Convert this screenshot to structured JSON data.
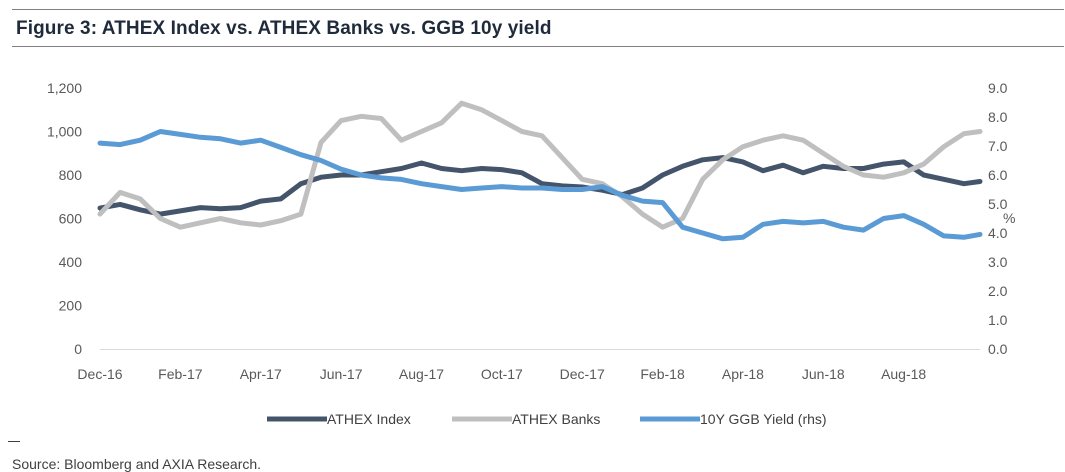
{
  "figure": {
    "title": "Figure 3: ATHEX Index vs. ATHEX Banks vs. GGB 10y yield",
    "source": "Source: Bloomberg and AXIA Research."
  },
  "chart_data": {
    "type": "line",
    "x_labels": [
      "Dec-16",
      "Feb-17",
      "Apr-17",
      "Jun-17",
      "Aug-17",
      "Oct-17",
      "Dec-17",
      "Feb-18",
      "Apr-18",
      "Jun-18",
      "Aug-18"
    ],
    "x_index_range": [
      0,
      10.95
    ],
    "left_axis": {
      "ylim": [
        0,
        1200
      ],
      "ticks": [
        "0",
        "200",
        "400",
        "600",
        "800",
        "1,000",
        "1,200"
      ],
      "tick_values": [
        0,
        200,
        400,
        600,
        800,
        1000,
        1200
      ]
    },
    "right_axis": {
      "ylim": [
        0,
        9
      ],
      "label": "%",
      "ticks": [
        "0.0",
        "1.0",
        "2.0",
        "3.0",
        "4.0",
        "5.0",
        "6.0",
        "7.0",
        "8.0",
        "9.0"
      ],
      "tick_values": [
        0,
        1,
        2,
        3,
        4,
        5,
        6,
        7,
        8,
        9
      ]
    },
    "grid": false,
    "legend_position": "bottom",
    "series": [
      {
        "name": "ATHEX Index",
        "axis": "left",
        "color": "#44546a",
        "x": [
          0,
          0.25,
          0.5,
          0.75,
          1,
          1.25,
          1.5,
          1.75,
          2,
          2.25,
          2.5,
          2.75,
          3,
          3.25,
          3.5,
          3.75,
          4,
          4.25,
          4.5,
          4.75,
          5,
          5.25,
          5.5,
          5.75,
          6,
          6.25,
          6.5,
          6.75,
          7,
          7.25,
          7.5,
          7.75,
          8,
          8.25,
          8.5,
          8.75,
          9,
          9.25,
          9.5,
          9.75,
          10,
          10.25,
          10.5,
          10.75,
          10.95
        ],
        "y": [
          648,
          665,
          640,
          620,
          635,
          650,
          645,
          650,
          680,
          690,
          760,
          790,
          800,
          800,
          815,
          830,
          855,
          830,
          820,
          830,
          825,
          810,
          760,
          750,
          745,
          730,
          710,
          740,
          800,
          840,
          870,
          880,
          860,
          820,
          845,
          810,
          840,
          830,
          830,
          850,
          860,
          800,
          780,
          760,
          770
        ]
      },
      {
        "name": "ATHEX Banks",
        "axis": "left",
        "color": "#bfbfbf",
        "x": [
          0,
          0.25,
          0.5,
          0.75,
          1,
          1.25,
          1.5,
          1.75,
          2,
          2.25,
          2.5,
          2.75,
          3,
          3.25,
          3.5,
          3.75,
          4,
          4.25,
          4.5,
          4.75,
          5,
          5.25,
          5.5,
          5.75,
          6,
          6.25,
          6.5,
          6.75,
          7,
          7.25,
          7.5,
          7.75,
          8,
          8.25,
          8.5,
          8.75,
          9,
          9.25,
          9.5,
          9.75,
          10,
          10.25,
          10.5,
          10.75,
          10.95
        ],
        "y": [
          620,
          720,
          690,
          600,
          560,
          580,
          600,
          580,
          570,
          590,
          620,
          950,
          1050,
          1070,
          1060,
          960,
          1000,
          1040,
          1130,
          1100,
          1050,
          1000,
          980,
          880,
          780,
          760,
          700,
          620,
          560,
          600,
          780,
          870,
          930,
          960,
          980,
          960,
          900,
          840,
          800,
          790,
          810,
          850,
          930,
          990,
          1000
        ]
      },
      {
        "name": "10Y GGB Yield (rhs)",
        "axis": "right",
        "color": "#5b9bd5",
        "x": [
          0,
          0.25,
          0.5,
          0.75,
          1,
          1.25,
          1.5,
          1.75,
          2,
          2.25,
          2.5,
          2.75,
          3,
          3.25,
          3.5,
          3.75,
          4,
          4.25,
          4.5,
          4.75,
          5,
          5.25,
          5.5,
          5.75,
          6,
          6.25,
          6.5,
          6.75,
          7,
          7.25,
          7.5,
          7.75,
          8,
          8.25,
          8.5,
          8.75,
          9,
          9.25,
          9.5,
          9.75,
          10,
          10.25,
          10.5,
          10.75,
          10.95
        ],
        "y": [
          7.1,
          7.05,
          7.2,
          7.5,
          7.4,
          7.3,
          7.25,
          7.1,
          7.2,
          6.95,
          6.7,
          6.5,
          6.2,
          6.0,
          5.9,
          5.85,
          5.7,
          5.6,
          5.5,
          5.55,
          5.6,
          5.55,
          5.55,
          5.5,
          5.5,
          5.6,
          5.3,
          5.1,
          5.05,
          4.2,
          4.0,
          3.8,
          3.85,
          4.3,
          4.4,
          4.35,
          4.4,
          4.2,
          4.1,
          4.5,
          4.6,
          4.3,
          3.9,
          3.85,
          3.95
        ]
      }
    ]
  }
}
